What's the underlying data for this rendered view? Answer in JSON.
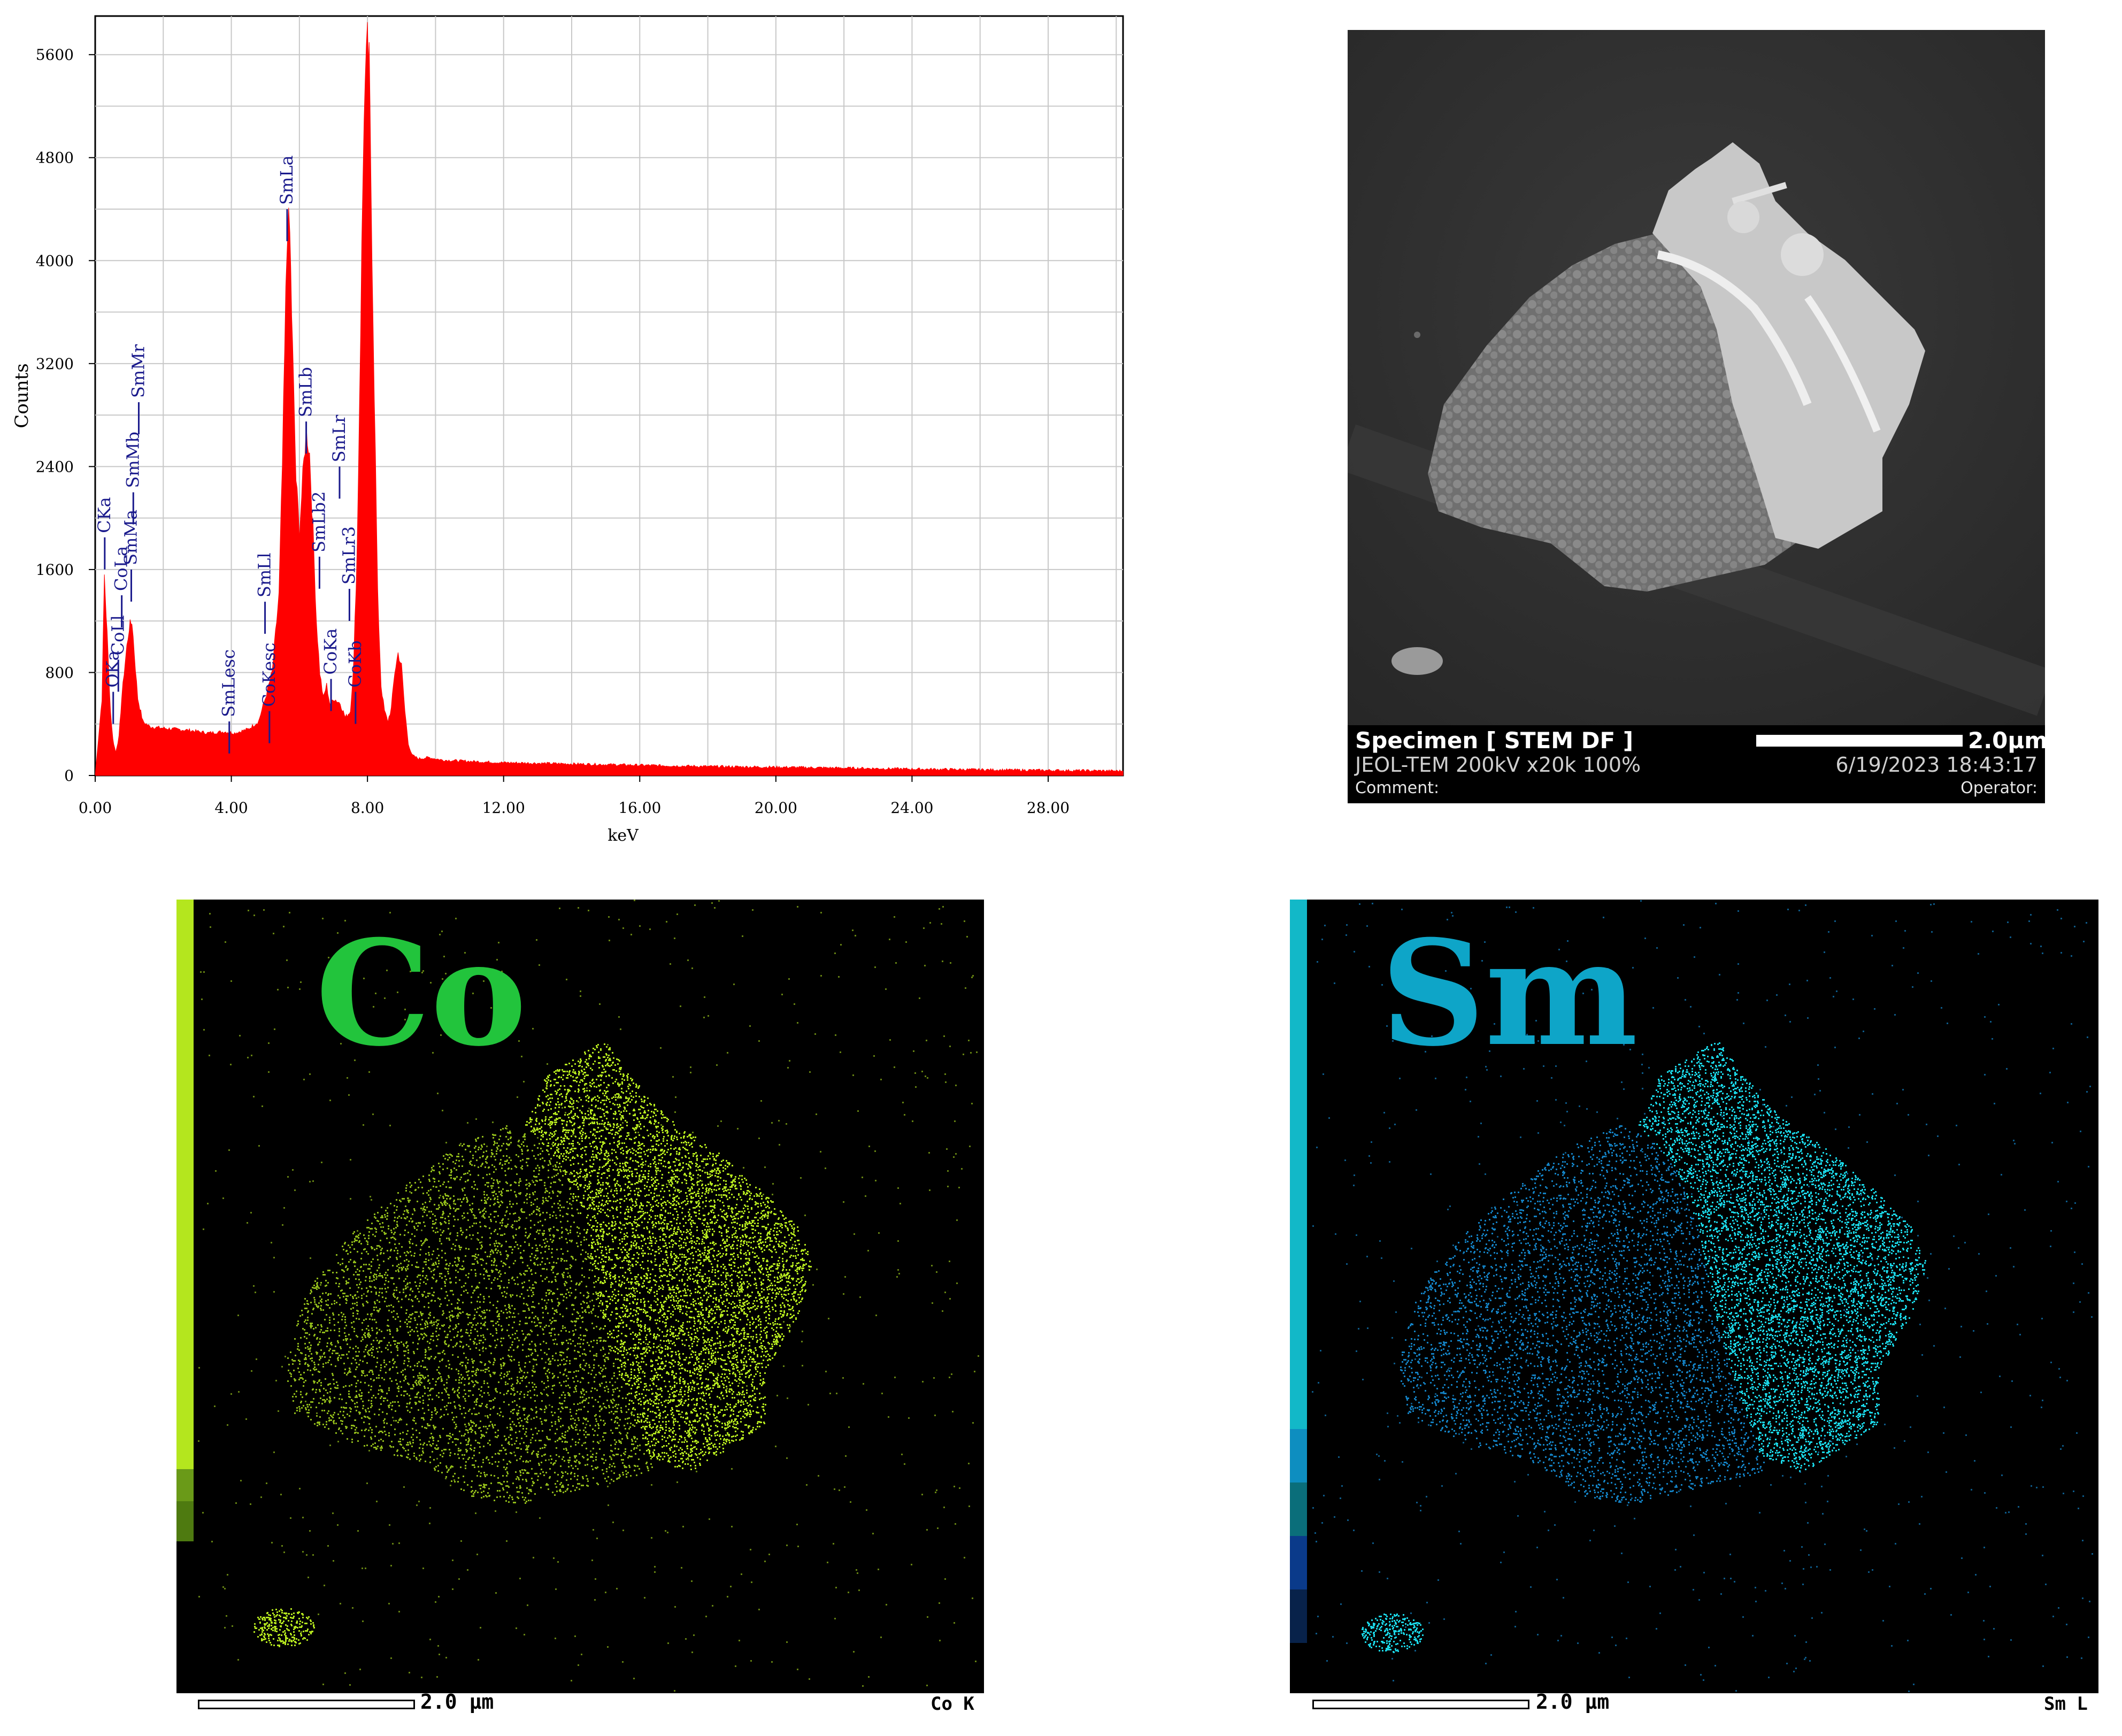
{
  "chart_data": {
    "type": "area",
    "xlabel": "keV",
    "ylabel": "Counts",
    "xlim": [
      0,
      30.2
    ],
    "ylim": [
      0,
      5900
    ],
    "x_ticks": [
      "0.00",
      "4.00",
      "8.00",
      "12.00",
      "16.00",
      "20.00",
      "24.00",
      "28.00"
    ],
    "y_ticks": [
      "0",
      "800",
      "1600",
      "2400",
      "3200",
      "4000",
      "4800",
      "5600"
    ],
    "grid": true,
    "series_color": "#ff0000",
    "x": [
      0.0,
      0.2,
      0.27,
      0.35,
      0.45,
      0.52,
      0.6,
      0.7,
      0.78,
      0.85,
      0.93,
      1.0,
      1.08,
      1.15,
      1.25,
      1.4,
      1.6,
      1.9,
      2.3,
      2.8,
      3.3,
      3.8,
      4.1,
      4.5,
      4.8,
      5.0,
      5.2,
      5.4,
      5.5,
      5.6,
      5.65,
      5.72,
      5.8,
      5.9,
      6.0,
      6.1,
      6.2,
      6.3,
      6.4,
      6.5,
      6.6,
      6.7,
      6.8,
      6.9,
      7.0,
      7.1,
      7.2,
      7.35,
      7.5,
      7.6,
      7.7,
      7.8,
      7.9,
      8.0,
      8.05,
      8.1,
      8.2,
      8.3,
      8.4,
      8.5,
      8.6,
      8.7,
      8.8,
      8.9,
      9.0,
      9.1,
      9.2,
      9.3,
      9.5,
      9.8,
      10.2,
      11.0,
      12.0,
      14.0,
      16.0,
      18.0,
      20.0,
      22.0,
      24.0,
      26.0,
      28.0,
      30.2
    ],
    "y": [
      0,
      600,
      1550,
      1100,
      500,
      280,
      180,
      300,
      600,
      800,
      1000,
      1150,
      1200,
      950,
      600,
      420,
      380,
      370,
      360,
      350,
      330,
      340,
      330,
      360,
      420,
      600,
      800,
      1400,
      2400,
      3700,
      4300,
      4200,
      3300,
      2300,
      1900,
      2300,
      2700,
      2500,
      1900,
      1200,
      800,
      600,
      700,
      550,
      600,
      580,
      560,
      450,
      500,
      900,
      1800,
      3500,
      5200,
      5650,
      5500,
      4700,
      3000,
      1400,
      700,
      500,
      420,
      520,
      800,
      950,
      850,
      500,
      250,
      160,
      130,
      140,
      120,
      110,
      100,
      90,
      80,
      70,
      65,
      58,
      50,
      45,
      40,
      35
    ],
    "peak_labels": [
      {
        "label": "CKa",
        "x": 0.28,
        "y": 1850
      },
      {
        "label": "OKa",
        "x": 0.53,
        "y": 650
      },
      {
        "label": "CoLl",
        "x": 0.68,
        "y": 900
      },
      {
        "label": "CoLa",
        "x": 0.78,
        "y": 1400
      },
      {
        "label": "SmMa",
        "x": 1.06,
        "y": 1600
      },
      {
        "label": "SmMb",
        "x": 1.12,
        "y": 2200
      },
      {
        "label": "SmMr",
        "x": 1.28,
        "y": 2900
      },
      {
        "label": "SmLesc",
        "x": 3.94,
        "y": 420
      },
      {
        "label": "CoKesc",
        "x": 5.12,
        "y": 500
      },
      {
        "label": "SmLl",
        "x": 4.99,
        "y": 1350
      },
      {
        "label": "SmLa",
        "x": 5.64,
        "y": 4400
      },
      {
        "label": "SmLb",
        "x": 6.2,
        "y": 2750
      },
      {
        "label": "SmLb2",
        "x": 6.59,
        "y": 1700
      },
      {
        "label": "SmLr",
        "x": 7.18,
        "y": 2400
      },
      {
        "label": "CoKa",
        "x": 6.93,
        "y": 750
      },
      {
        "label": "SmLr3",
        "x": 7.47,
        "y": 1450
      },
      {
        "label": "CoKb",
        "x": 7.65,
        "y": 650
      }
    ]
  },
  "stem": {
    "title": "Specimen [ STEM DF ]",
    "instrument": "JEOL-TEM 200kV x20k 100%",
    "comment": "Comment:",
    "scale": "2.0μm",
    "datetime": "6/19/2023 18:43:17",
    "operator": "Operator:"
  },
  "maps": {
    "co": {
      "letter": "Co",
      "letter_color": "#22c43c",
      "dot_color": "#b4e61e",
      "scale": "2.0 μm",
      "label": "Co K"
    },
    "sm": {
      "letter": "Sm",
      "letter_color": "#0ea5c8",
      "dot_color": "#1ad6e6",
      "scale": "2.0 μm",
      "label": "Sm L"
    }
  }
}
